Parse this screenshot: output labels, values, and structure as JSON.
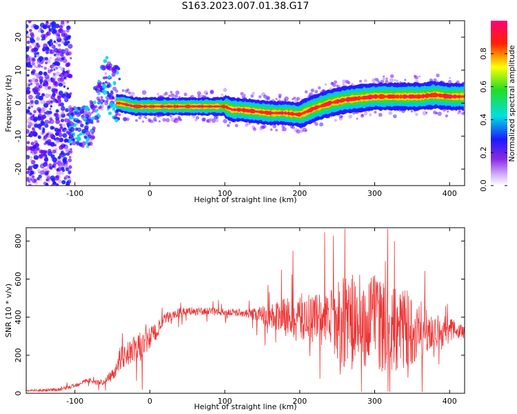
{
  "title": "S163.2023.007.01.38.G17",
  "chart_data": [
    {
      "type": "heatmap",
      "xlabel": "Height of straight line (km)",
      "ylabel": "Frequency (Hz)",
      "xlim": [
        -165,
        420
      ],
      "ylim": [
        -25,
        25
      ],
      "xticks": [
        -100,
        0,
        100,
        200,
        300,
        400
      ],
      "yticks": [
        -20,
        -10,
        0,
        10,
        20
      ],
      "colorbar": {
        "label": "Normalized spectral amplitude",
        "range": [
          0.0,
          1.0
        ],
        "ticks": [
          0.0,
          0.2,
          0.4,
          0.6,
          0.8
        ],
        "colormap": "spectral-rainbow (white, violet, blue, cyan, green, yellow, red, magenta)"
      },
      "ridge_frequency": {
        "x": [
          -40,
          -20,
          0,
          20,
          40,
          60,
          80,
          100,
          110,
          120,
          140,
          160,
          180,
          200,
          220,
          240,
          260,
          280,
          300,
          320,
          340,
          360,
          380,
          400,
          420
        ],
        "y": [
          0,
          -1,
          -1,
          -1,
          -1,
          -1,
          -1,
          -1,
          -2,
          -2,
          -2.5,
          -3,
          -3,
          -3.5,
          -1.5,
          0,
          1,
          1.5,
          2,
          2,
          2,
          2,
          2.5,
          2,
          2
        ]
      },
      "early_features": {
        "x": [
          -80,
          -70,
          -60,
          -50
        ],
        "y": [
          -7,
          0,
          8,
          3
        ]
      }
    },
    {
      "type": "line",
      "xlabel": "Height of straight line (km)",
      "ylabel": "SNR (10 * v/v)",
      "xlim": [
        -165,
        420
      ],
      "ylim": [
        0,
        870
      ],
      "xticks": [
        -100,
        0,
        100,
        200,
        300,
        400
      ],
      "yticks": [
        0,
        200,
        400,
        600,
        800
      ],
      "color": "#ee3333",
      "series": [
        {
          "x": [
            -165,
            -140,
            -120,
            -100,
            -90,
            -80,
            -70,
            -60,
            -50,
            -40,
            -30,
            -20,
            -10,
            0,
            10,
            20,
            30,
            40,
            60,
            80,
            100,
            120,
            140,
            160,
            180,
            200,
            220,
            240,
            260,
            280,
            300,
            320,
            340,
            360,
            380,
            400,
            420
          ],
          "y": [
            15,
            15,
            20,
            40,
            60,
            70,
            55,
            60,
            100,
            180,
            210,
            230,
            250,
            290,
            330,
            390,
            410,
            425,
            430,
            430,
            425,
            425,
            415,
            410,
            400,
            395,
            395,
            390,
            380,
            370,
            365,
            355,
            345,
            340,
            330,
            330,
            325
          ]
        }
      ],
      "noise_amplitude": {
        "x": [
          -165,
          -60,
          -40,
          -10,
          20,
          60,
          130,
          150,
          200,
          240,
          260,
          300,
          340,
          380,
          420
        ],
        "y": [
          5,
          15,
          60,
          80,
          30,
          20,
          20,
          50,
          130,
          160,
          250,
          260,
          220,
          100,
          40
        ]
      }
    }
  ]
}
